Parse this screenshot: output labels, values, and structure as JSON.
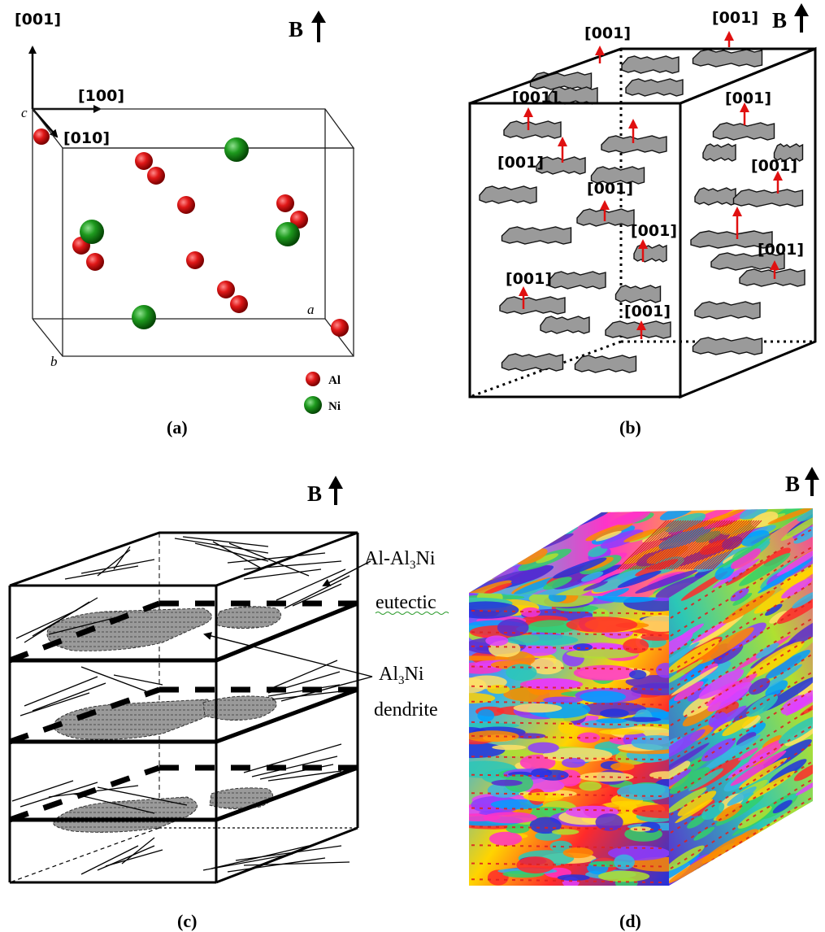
{
  "panel_a": {
    "axis_001": "[001]",
    "axis_100": "[100]",
    "axis_010": "[010]",
    "axis_c": "c",
    "axis_a": "a",
    "axis_b": "b",
    "build_label": "B",
    "legend": [
      {
        "label": "Al",
        "color": "#d01010"
      },
      {
        "label": "Ni",
        "color": "#138a13"
      }
    ],
    "caption": "(a)"
  },
  "panel_b": {
    "build_label": "B",
    "direction_label": "[001]",
    "arrow_color": "#e01010",
    "caption": "(b)"
  },
  "panel_c": {
    "build_label": "B",
    "eutectic_label_1": "Al-Al",
    "eutectic_label_sub": "3",
    "eutectic_label_2": "Ni",
    "eutectic_label_line2": "eutectic",
    "dendrite_label_1": "Al",
    "dendrite_label_sub": "3",
    "dendrite_label_2": "Ni",
    "dendrite_label_line2": "dendrite",
    "caption": "(c)"
  },
  "panel_d": {
    "build_label": "B",
    "caption": "(d)"
  }
}
